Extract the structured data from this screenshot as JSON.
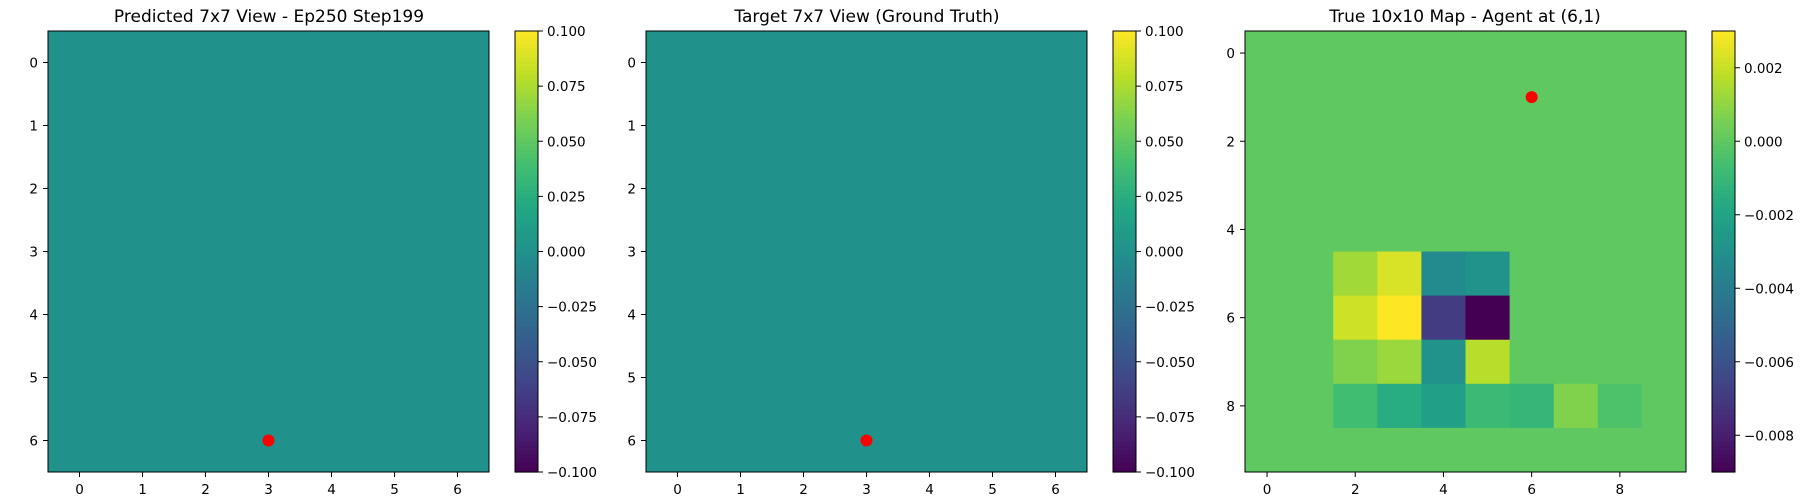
{
  "chart_data": [
    {
      "type": "heatmap",
      "title": "Predicted 7x7 View - Ep250 Step199",
      "grid_size": [
        7,
        7
      ],
      "values": [
        [
          0,
          0,
          0,
          0,
          0,
          0,
          0
        ],
        [
          0,
          0,
          0,
          0,
          0,
          0,
          0
        ],
        [
          0,
          0,
          0,
          0,
          0,
          0,
          0
        ],
        [
          0,
          0,
          0,
          0,
          0,
          0,
          0
        ],
        [
          0,
          0,
          0,
          0,
          0,
          0,
          0
        ],
        [
          0,
          0,
          0,
          0,
          0,
          0,
          0
        ],
        [
          0,
          0,
          0,
          0,
          0,
          0,
          0
        ]
      ],
      "vmin": -0.1,
      "vmax": 0.1,
      "x_ticks": [
        "0",
        "1",
        "2",
        "3",
        "4",
        "5",
        "6"
      ],
      "y_ticks": [
        "0",
        "1",
        "2",
        "3",
        "4",
        "5",
        "6"
      ],
      "colorbar_ticks": [
        "0.100",
        "0.075",
        "0.050",
        "0.025",
        "0.000",
        "−0.025",
        "−0.050",
        "−0.075",
        "−0.100"
      ],
      "colorbar_tick_values": [
        0.1,
        0.075,
        0.05,
        0.025,
        0.0,
        -0.025,
        -0.05,
        -0.075,
        -0.1
      ],
      "marker": {
        "x": 3,
        "y": 6,
        "color": "#ff0000"
      },
      "colormap": "viridis"
    },
    {
      "type": "heatmap",
      "title": "Target 7x7 View (Ground Truth)",
      "grid_size": [
        7,
        7
      ],
      "values": [
        [
          0,
          0,
          0,
          0,
          0,
          0,
          0
        ],
        [
          0,
          0,
          0,
          0,
          0,
          0,
          0
        ],
        [
          0,
          0,
          0,
          0,
          0,
          0,
          0
        ],
        [
          0,
          0,
          0,
          0,
          0,
          0,
          0
        ],
        [
          0,
          0,
          0,
          0,
          0,
          0,
          0
        ],
        [
          0,
          0,
          0,
          0,
          0,
          0,
          0
        ],
        [
          0,
          0,
          0,
          0,
          0,
          0,
          0
        ]
      ],
      "vmin": -0.1,
      "vmax": 0.1,
      "x_ticks": [
        "0",
        "1",
        "2",
        "3",
        "4",
        "5",
        "6"
      ],
      "y_ticks": [
        "0",
        "1",
        "2",
        "3",
        "4",
        "5",
        "6"
      ],
      "colorbar_ticks": [
        "0.100",
        "0.075",
        "0.050",
        "0.025",
        "0.000",
        "−0.025",
        "−0.050",
        "−0.075",
        "−0.100"
      ],
      "colorbar_tick_values": [
        0.1,
        0.075,
        0.05,
        0.025,
        0.0,
        -0.025,
        -0.05,
        -0.075,
        -0.1
      ],
      "marker": {
        "x": 3,
        "y": 6,
        "color": "#ff0000"
      },
      "colormap": "viridis"
    },
    {
      "type": "heatmap",
      "title": "True 10x10 Map - Agent at (6,1)",
      "grid_size": [
        10,
        10
      ],
      "values": [
        [
          0,
          0,
          0,
          0,
          0,
          0,
          0,
          0,
          0,
          0
        ],
        [
          0,
          0,
          0,
          0,
          0,
          0,
          0,
          0,
          0,
          0
        ],
        [
          0,
          0,
          0,
          0,
          0,
          0,
          0,
          0,
          0,
          0
        ],
        [
          0,
          0,
          0,
          0,
          0,
          0,
          0,
          0,
          0,
          0
        ],
        [
          0,
          0,
          0,
          0,
          0,
          0,
          0,
          0,
          0,
          0
        ],
        [
          0,
          0,
          0.0013,
          0.0023,
          -0.0033,
          -0.0029,
          0,
          0,
          0,
          0
        ],
        [
          0,
          0,
          0.0021,
          0.003,
          -0.0069,
          -0.009,
          0,
          0,
          0,
          0
        ],
        [
          0,
          0,
          0.0007,
          0.0012,
          -0.0029,
          0.0017,
          0,
          0,
          0,
          0
        ],
        [
          0,
          0,
          -0.0007,
          -0.0016,
          -0.0022,
          -0.0009,
          -0.0011,
          0.0007,
          -0.0004,
          0
        ],
        [
          0,
          0,
          0,
          0,
          0,
          0,
          0,
          0,
          0,
          0
        ]
      ],
      "vmin": -0.009,
      "vmax": 0.003,
      "x_ticks": [
        "0",
        "2",
        "4",
        "6",
        "8"
      ],
      "x_tick_values": [
        0,
        2,
        4,
        6,
        8
      ],
      "y_ticks": [
        "0",
        "2",
        "4",
        "6",
        "8"
      ],
      "y_tick_values": [
        0,
        2,
        4,
        6,
        8
      ],
      "colorbar_ticks": [
        "0.002",
        "0.000",
        "−0.002",
        "−0.004",
        "−0.006",
        "−0.008"
      ],
      "colorbar_tick_values": [
        0.002,
        0.0,
        -0.002,
        -0.004,
        -0.006,
        -0.008
      ],
      "marker": {
        "x": 6,
        "y": 1,
        "color": "#ff0000"
      },
      "colormap": "viridis"
    }
  ]
}
